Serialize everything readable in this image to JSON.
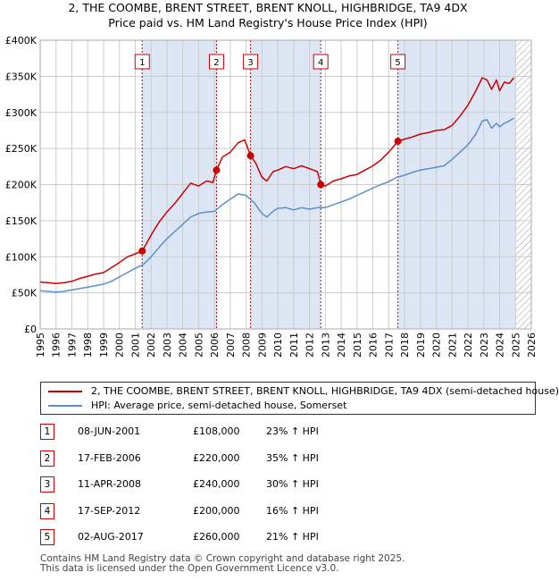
{
  "header": {
    "title_line1": "2, THE COOMBE, BRENT STREET, BRENT KNOLL, HIGHBRIDGE, TA9 4DX",
    "title_line2": "Price paid vs. HM Land Registry's House Price Index (HPI)"
  },
  "colors": {
    "property": "#cc0000",
    "hpi": "#5b8fcc",
    "shade": "#dde6f5",
    "grid": "#cccccc",
    "marker_line": "#cc0000"
  },
  "chart_data": {
    "type": "line",
    "xlim": [
      1995,
      2026
    ],
    "ylim": [
      0,
      400000
    ],
    "yticks": [
      0,
      50000,
      100000,
      150000,
      200000,
      250000,
      300000,
      350000,
      400000
    ],
    "ytick_labels": [
      "£0",
      "£50K",
      "£100K",
      "£150K",
      "£200K",
      "£250K",
      "£300K",
      "£350K",
      "£400K"
    ],
    "xticks": [
      1995,
      1996,
      1997,
      1998,
      1999,
      2000,
      2001,
      2002,
      2003,
      2004,
      2005,
      2006,
      2007,
      2008,
      2009,
      2010,
      2011,
      2012,
      2013,
      2014,
      2015,
      2016,
      2017,
      2018,
      2019,
      2020,
      2021,
      2022,
      2023,
      2024,
      2025,
      2026
    ],
    "shaded_spans": [
      [
        2001.44,
        2006.13
      ],
      [
        2008.28,
        2012.71
      ],
      [
        2017.58,
        2025.0
      ]
    ],
    "hatched_from": 2025.0,
    "series": [
      {
        "name": "2, THE COOMBE, BRENT STREET, BRENT KNOLL, HIGHBRIDGE, TA9 4DX (semi-detached house)",
        "color": "#cc0000",
        "x": [
          1995.0,
          1995.5,
          1996.0,
          1996.5,
          1997.0,
          1997.5,
          1998.0,
          1998.5,
          1999.0,
          1999.5,
          2000.0,
          2000.5,
          2001.0,
          2001.44,
          2001.7,
          2002.0,
          2002.5,
          2003.0,
          2003.5,
          2004.0,
          2004.5,
          2005.0,
          2005.5,
          2005.9,
          2006.13,
          2006.5,
          2007.0,
          2007.5,
          2007.9,
          2008.28,
          2008.6,
          2009.0,
          2009.3,
          2009.7,
          2010.0,
          2010.5,
          2011.0,
          2011.5,
          2012.0,
          2012.5,
          2012.71,
          2013.0,
          2013.5,
          2014.0,
          2014.5,
          2015.0,
          2015.5,
          2016.0,
          2016.5,
          2017.0,
          2017.58,
          2018.0,
          2018.5,
          2019.0,
          2019.5,
          2020.0,
          2020.5,
          2021.0,
          2021.5,
          2022.0,
          2022.5,
          2022.9,
          2023.2,
          2023.5,
          2023.8,
          2024.0,
          2024.3,
          2024.6,
          2024.9
        ],
        "values": [
          65000,
          64000,
          63000,
          64000,
          66000,
          70000,
          73000,
          76000,
          78000,
          85000,
          92000,
          100000,
          104000,
          108000,
          118000,
          130000,
          148000,
          162000,
          174000,
          188000,
          202000,
          198000,
          205000,
          203000,
          220000,
          238000,
          245000,
          258000,
          262000,
          240000,
          230000,
          210000,
          205000,
          218000,
          220000,
          225000,
          222000,
          226000,
          222000,
          218000,
          200000,
          198000,
          205000,
          208000,
          212000,
          214000,
          220000,
          226000,
          234000,
          245000,
          260000,
          263000,
          266000,
          270000,
          272000,
          275000,
          276000,
          282000,
          295000,
          310000,
          330000,
          348000,
          345000,
          332000,
          345000,
          330000,
          342000,
          340000,
          348000
        ]
      },
      {
        "name": "HPI: Average price, semi-detached house, Somerset",
        "color": "#5b8fcc",
        "x": [
          1995.0,
          1995.5,
          1996.0,
          1996.5,
          1997.0,
          1997.5,
          1998.0,
          1998.5,
          1999.0,
          1999.5,
          2000.0,
          2000.5,
          2001.0,
          2001.5,
          2002.0,
          2002.5,
          2003.0,
          2003.5,
          2004.0,
          2004.5,
          2005.0,
          2005.5,
          2006.0,
          2006.5,
          2007.0,
          2007.5,
          2008.0,
          2008.5,
          2009.0,
          2009.3,
          2009.7,
          2010.0,
          2010.5,
          2011.0,
          2011.5,
          2012.0,
          2012.5,
          2013.0,
          2013.5,
          2014.0,
          2014.5,
          2015.0,
          2015.5,
          2016.0,
          2016.5,
          2017.0,
          2017.5,
          2018.0,
          2018.5,
          2019.0,
          2019.5,
          2020.0,
          2020.5,
          2021.0,
          2021.5,
          2022.0,
          2022.5,
          2022.9,
          2023.2,
          2023.5,
          2023.8,
          2024.0,
          2024.3,
          2024.6,
          2024.9
        ],
        "values": [
          53000,
          52000,
          51000,
          52000,
          54000,
          56000,
          58000,
          60000,
          62000,
          66000,
          72000,
          78000,
          84000,
          89000,
          100000,
          113000,
          125000,
          135000,
          145000,
          155000,
          160000,
          162000,
          163000,
          172000,
          180000,
          187000,
          185000,
          175000,
          160000,
          155000,
          163000,
          167000,
          168000,
          165000,
          168000,
          166000,
          168000,
          168000,
          172000,
          176000,
          180000,
          185000,
          190000,
          195000,
          200000,
          204000,
          210000,
          213000,
          217000,
          220000,
          222000,
          224000,
          226000,
          235000,
          245000,
          255000,
          270000,
          288000,
          290000,
          278000,
          285000,
          280000,
          285000,
          288000,
          292000
        ]
      }
    ],
    "sales": [
      {
        "label": "1",
        "x": 2001.44,
        "value": 108000
      },
      {
        "label": "2",
        "x": 2006.13,
        "value": 220000
      },
      {
        "label": "3",
        "x": 2008.28,
        "value": 240000
      },
      {
        "label": "4",
        "x": 2012.71,
        "value": 200000
      },
      {
        "label": "5",
        "x": 2017.58,
        "value": 260000
      }
    ]
  },
  "legend": {
    "property_label": "2, THE COOMBE, BRENT STREET, BRENT KNOLL, HIGHBRIDGE, TA9 4DX (semi-detached house)",
    "hpi_label": "HPI: Average price, semi-detached house, Somerset"
  },
  "transactions": [
    {
      "num": "1",
      "date": "08-JUN-2001",
      "price": "£108,000",
      "hpi": "23% ↑ HPI"
    },
    {
      "num": "2",
      "date": "17-FEB-2006",
      "price": "£220,000",
      "hpi": "35% ↑ HPI"
    },
    {
      "num": "3",
      "date": "11-APR-2008",
      "price": "£240,000",
      "hpi": "30% ↑ HPI"
    },
    {
      "num": "4",
      "date": "17-SEP-2012",
      "price": "£200,000",
      "hpi": "16% ↑ HPI"
    },
    {
      "num": "5",
      "date": "02-AUG-2017",
      "price": "£260,000",
      "hpi": "21% ↑ HPI"
    }
  ],
  "footer": {
    "line1": "Contains HM Land Registry data © Crown copyright and database right 2025.",
    "line2": "This data is licensed under the Open Government Licence v3.0."
  }
}
